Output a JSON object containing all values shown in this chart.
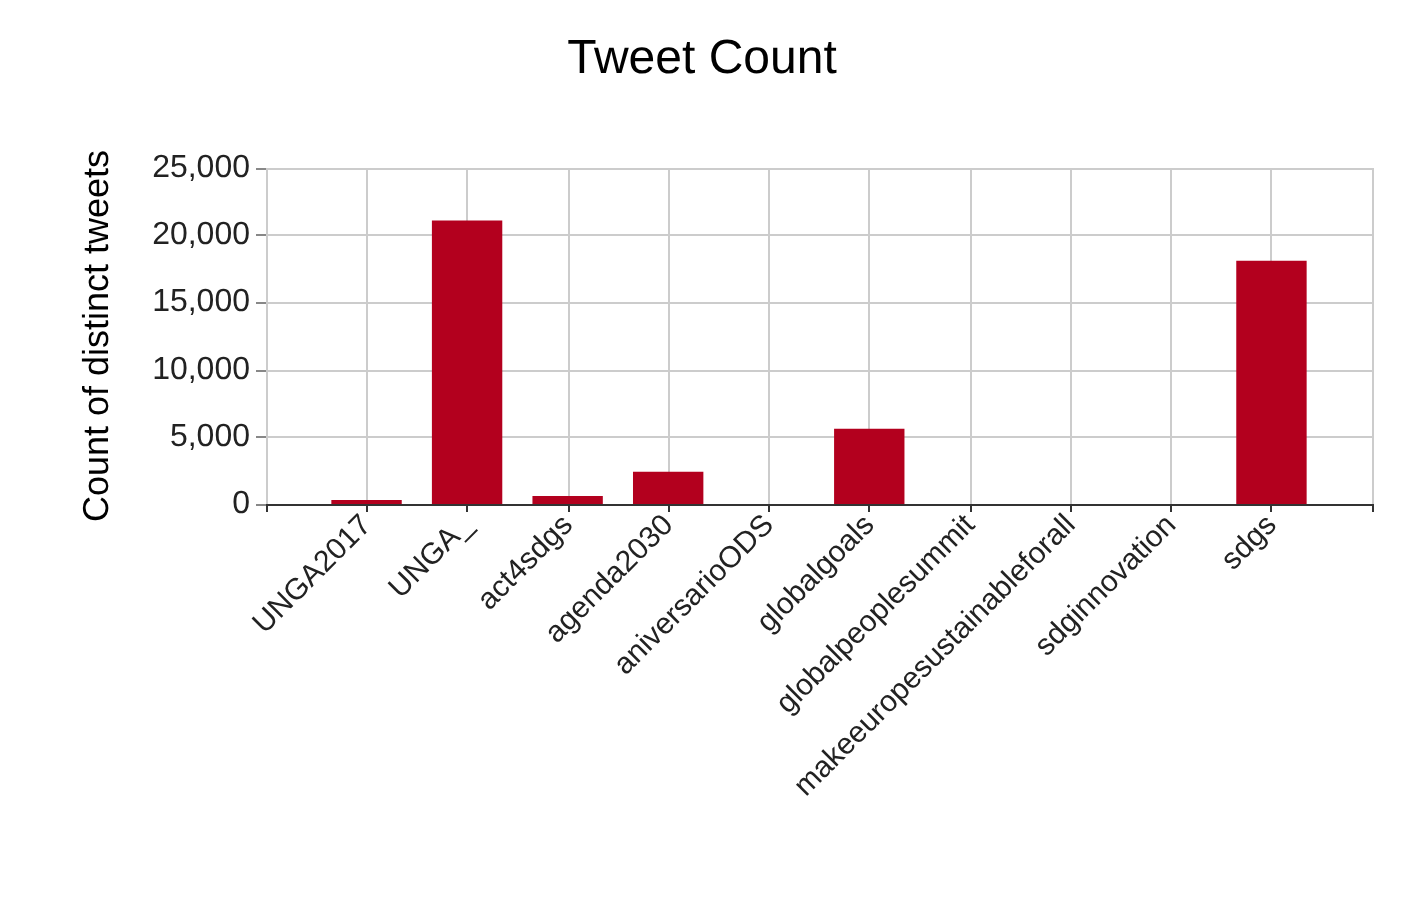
{
  "chart_data": {
    "type": "bar",
    "title": "Tweet Count",
    "ylabel": "Count of distinct tweets",
    "categories": [
      "UNGA2017",
      "UNGA_",
      "act4sdgs",
      "agenda2030",
      "aniversarioODS",
      "globalgoals",
      "globalpeoplesummit",
      "makeeuropesustainableforall",
      "sdginnovation",
      "sdgs"
    ],
    "values": [
      300,
      21100,
      600,
      2400,
      0,
      5600,
      0,
      0,
      0,
      18100
    ],
    "color": "#b3001e",
    "ylim": [
      0,
      25000
    ],
    "yticks": [
      0,
      {
        "value": 5000,
        "label": "5,000"
      },
      {
        "value": 10000,
        "label": "10,000"
      },
      {
        "value": 15000,
        "label": "15,000"
      },
      {
        "value": 20000,
        "label": "20,000"
      },
      {
        "value": 25000,
        "label": "25,000"
      }
    ],
    "grid": true
  }
}
